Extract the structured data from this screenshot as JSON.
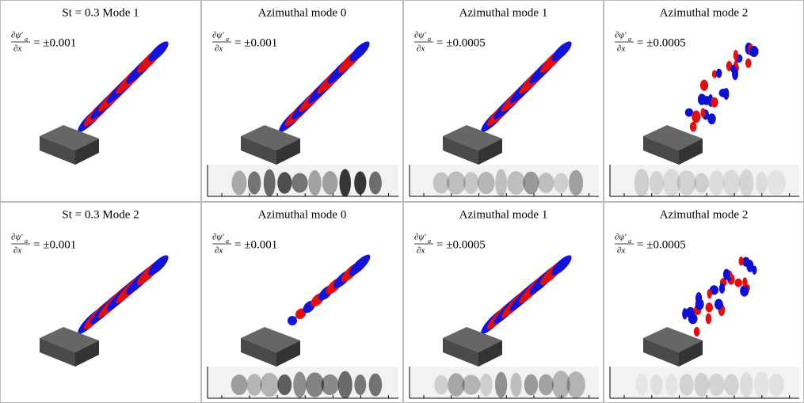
{
  "panels": [
    {
      "title": "St = 0.3 Mode 1",
      "numerator": "∂ψ′",
      "subscript": "a",
      "denominator": "∂x",
      "level": "= ±0.001"
    },
    {
      "title": "Azimuthal mode 0",
      "numerator": "∂ψ′",
      "subscript": "a",
      "denominator": "∂x",
      "level": "= ±0.001"
    },
    {
      "title": "Azimuthal mode 1",
      "numerator": "∂ψ′",
      "subscript": "a",
      "denominator": "∂x",
      "level": "= ±0.0005"
    },
    {
      "title": "Azimuthal mode 2",
      "numerator": "∂ψ′",
      "subscript": "a",
      "denominator": "∂x",
      "level": "= ±0.0005"
    },
    {
      "title": "St = 0.3 Mode 2",
      "numerator": "∂ψ′",
      "subscript": "a",
      "denominator": "∂x",
      "level": "= ±0.001"
    },
    {
      "title": "Azimuthal mode 0",
      "numerator": "∂ψ′",
      "subscript": "a",
      "denominator": "∂x",
      "level": "= ±0.001"
    },
    {
      "title": "Azimuthal mode 1",
      "numerator": "∂ψ′",
      "subscript": "a",
      "denominator": "∂x",
      "level": "= ±0.0005"
    },
    {
      "title": "Azimuthal mode 2",
      "numerator": "∂ψ′",
      "subscript": "a",
      "denominator": "∂x",
      "level": "= ±0.0005"
    }
  ]
}
